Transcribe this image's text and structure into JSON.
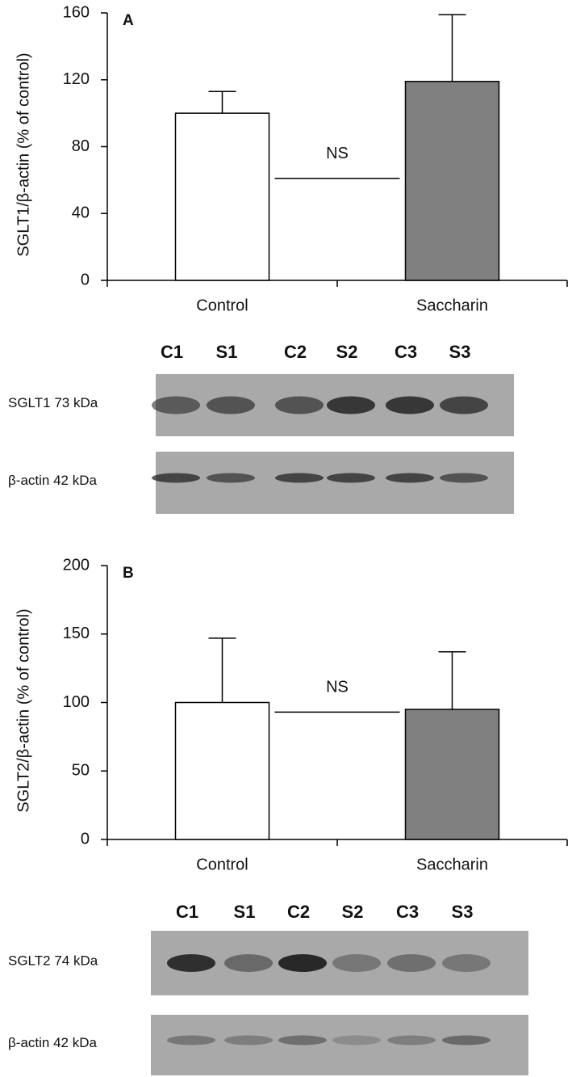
{
  "chart_data": [
    {
      "type": "bar",
      "panel": "A",
      "ylabel": "SGLT1/β-actin (% of control)",
      "categories": [
        "Control",
        "Saccharin"
      ],
      "values": [
        100,
        119
      ],
      "errors": [
        13,
        40
      ],
      "colors": [
        "#ffffff",
        "#808080"
      ],
      "ylim": [
        0,
        160
      ],
      "yticks": [
        0,
        40,
        80,
        120,
        160
      ],
      "annotations": [
        {
          "text": "NS",
          "value": 61
        }
      ]
    },
    {
      "type": "bar",
      "panel": "B",
      "ylabel": "SGLT2/β-actin (% of control)",
      "categories": [
        "Control",
        "Saccharin"
      ],
      "values": [
        100,
        95
      ],
      "errors": [
        47,
        42
      ],
      "colors": [
        "#ffffff",
        "#808080"
      ],
      "ylim": [
        0,
        200
      ],
      "yticks": [
        0,
        50,
        100,
        150,
        200
      ],
      "annotations": [
        {
          "text": "NS",
          "value": 93
        }
      ]
    }
  ],
  "blots": [
    {
      "lanes": [
        "C1",
        "S1",
        "C2",
        "S2",
        "C3",
        "S3"
      ],
      "rows": [
        {
          "label": "SGLT1 73 kDa"
        },
        {
          "label": "β-actin 42 kDa"
        }
      ]
    },
    {
      "lanes": [
        "C1",
        "S1",
        "C2",
        "S2",
        "C3",
        "S3"
      ],
      "rows": [
        {
          "label": "SGLT2 74 kDa"
        },
        {
          "label": "β-actin 42 kDa"
        }
      ]
    }
  ]
}
